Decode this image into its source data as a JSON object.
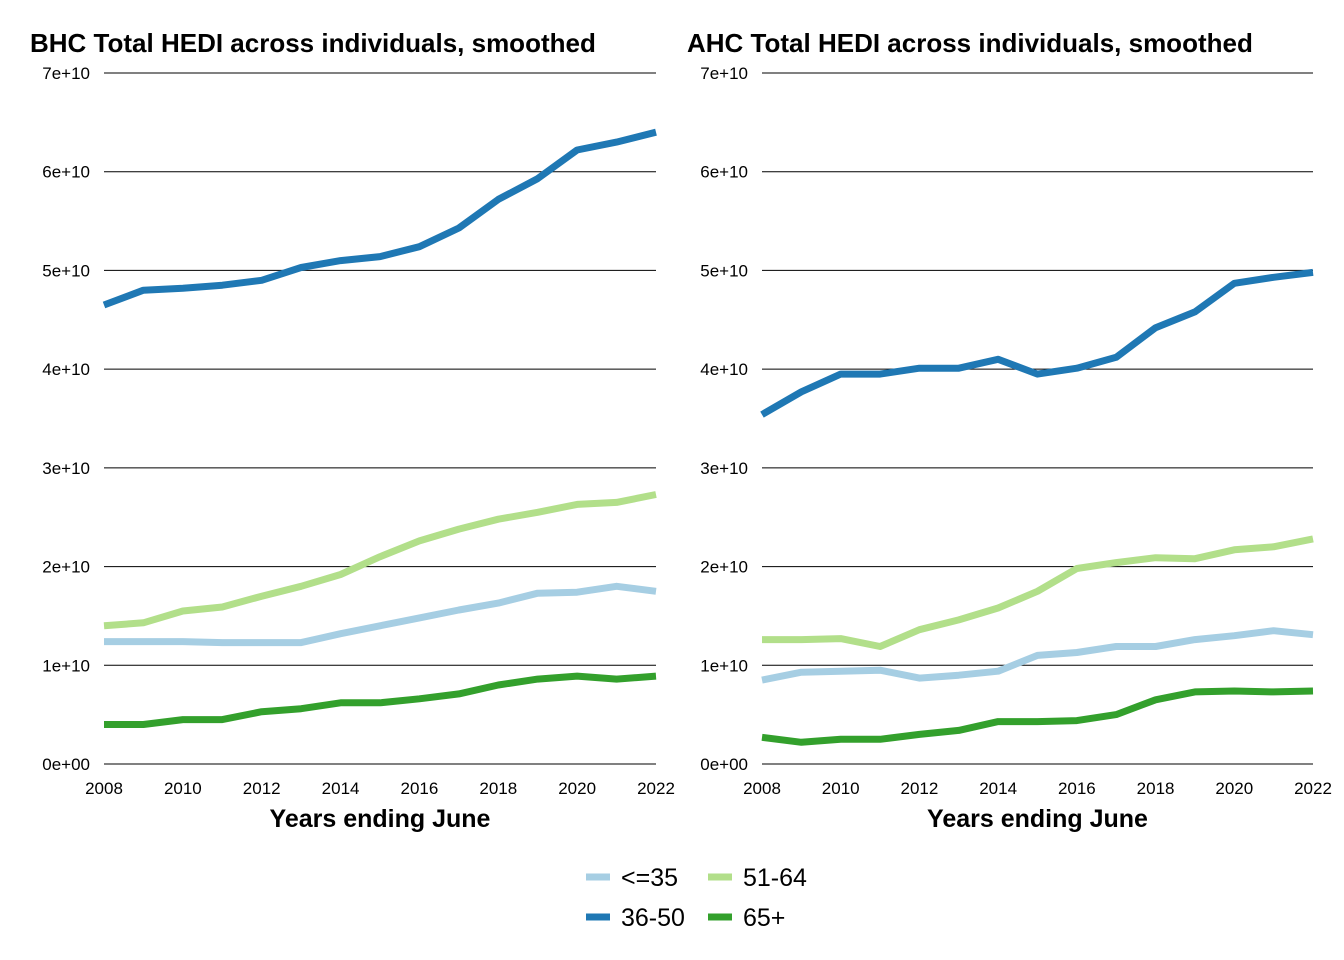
{
  "chart_data": [
    {
      "type": "line",
      "title": "BHC Total HEDI across individuals, smoothed",
      "xlabel": "Years ending June",
      "ylabel": "",
      "x": [
        2008,
        2009,
        2010,
        2011,
        2012,
        2013,
        2014,
        2015,
        2016,
        2017,
        2018,
        2019,
        2020,
        2021,
        2022
      ],
      "xlim": [
        2008,
        2022
      ],
      "xticks": [
        "2008",
        "2010",
        "2012",
        "2014",
        "2016",
        "2018",
        "2020",
        "2022"
      ],
      "ylim": [
        0,
        70000000000
      ],
      "yticks": [
        "0e+00",
        "1e+10",
        "2e+10",
        "3e+10",
        "4e+10",
        "5e+10",
        "6e+10",
        "7e+10"
      ],
      "grid": true,
      "series": [
        {
          "name": "<=35",
          "color": "#a6cee3",
          "values": [
            12400000000,
            12400000000,
            12400000000,
            12300000000,
            12300000000,
            12300000000,
            13200000000,
            14000000000,
            14800000000,
            15600000000,
            16300000000,
            17300000000,
            17400000000,
            18000000000,
            17500000000
          ]
        },
        {
          "name": "36-50",
          "color": "#1f78b4",
          "values": [
            46500000000,
            48000000000,
            48200000000,
            48500000000,
            49000000000,
            50300000000,
            51000000000,
            51400000000,
            52400000000,
            54300000000,
            57200000000,
            59300000000,
            62200000000,
            63000000000,
            64000000000
          ]
        },
        {
          "name": "51-64",
          "color": "#b2df8a",
          "values": [
            14000000000,
            14300000000,
            15500000000,
            15900000000,
            17000000000,
            18000000000,
            19200000000,
            21000000000,
            22600000000,
            23800000000,
            24800000000,
            25500000000,
            26300000000,
            26500000000,
            27300000000
          ]
        },
        {
          "name": "65+",
          "color": "#33a02c",
          "values": [
            4000000000,
            4000000000,
            4500000000,
            4500000000,
            5300000000,
            5600000000,
            6200000000,
            6200000000,
            6600000000,
            7100000000,
            8000000000,
            8600000000,
            8900000000,
            8600000000,
            8900000000
          ]
        }
      ]
    },
    {
      "type": "line",
      "title": "AHC Total HEDI across individuals, smoothed",
      "xlabel": "Years ending June",
      "ylabel": "",
      "x": [
        2008,
        2009,
        2010,
        2011,
        2012,
        2013,
        2014,
        2015,
        2016,
        2017,
        2018,
        2019,
        2020,
        2021,
        2022
      ],
      "xlim": [
        2008,
        2022
      ],
      "xticks": [
        "2008",
        "2010",
        "2012",
        "2014",
        "2016",
        "2018",
        "2020",
        "2022"
      ],
      "ylim": [
        0,
        70000000000
      ],
      "yticks": [
        "0e+00",
        "1e+10",
        "2e+10",
        "3e+10",
        "4e+10",
        "5e+10",
        "6e+10",
        "7e+10"
      ],
      "grid": true,
      "series": [
        {
          "name": "<=35",
          "color": "#a6cee3",
          "values": [
            8500000000,
            9300000000,
            9400000000,
            9500000000,
            8700000000,
            9000000000,
            9400000000,
            11000000000,
            11300000000,
            11900000000,
            11900000000,
            12600000000,
            13000000000,
            13500000000,
            13100000000
          ]
        },
        {
          "name": "36-50",
          "color": "#1f78b4",
          "values": [
            35400000000,
            37700000000,
            39500000000,
            39500000000,
            40100000000,
            40100000000,
            41000000000,
            39500000000,
            40100000000,
            41200000000,
            44200000000,
            45800000000,
            48700000000,
            49300000000,
            49800000000
          ]
        },
        {
          "name": "51-64",
          "color": "#b2df8a",
          "values": [
            12600000000,
            12600000000,
            12700000000,
            11900000000,
            13600000000,
            14600000000,
            15800000000,
            17500000000,
            19800000000,
            20400000000,
            20900000000,
            20800000000,
            21700000000,
            22000000000,
            22800000000
          ]
        },
        {
          "name": "65+",
          "color": "#33a02c",
          "values": [
            2700000000,
            2200000000,
            2500000000,
            2500000000,
            3000000000,
            3400000000,
            4300000000,
            4300000000,
            4400000000,
            5000000000,
            6500000000,
            7300000000,
            7400000000,
            7300000000,
            7400000000
          ]
        }
      ]
    }
  ],
  "legend": {
    "placement": "bottom",
    "items": [
      {
        "label": "<=35",
        "color": "#a6cee3"
      },
      {
        "label": "51-64",
        "color": "#b2df8a"
      },
      {
        "label": "36-50",
        "color": "#1f78b4"
      },
      {
        "label": "65+",
        "color": "#33a02c"
      }
    ]
  }
}
